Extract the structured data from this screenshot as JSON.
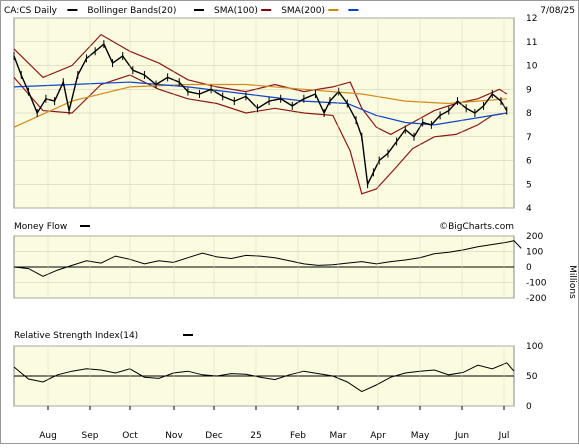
{
  "chart_data": [
    {
      "type": "line",
      "panel": "price",
      "title": "CA:CS Daily",
      "date": "7/08/25",
      "watermark": "©BigCharts.com",
      "legend": [
        {
          "label": "CA:CS Daily",
          "color": "#000000"
        },
        {
          "label": "Bollinger Bands(20)",
          "color": "#000000"
        },
        {
          "label": "SMA(100)",
          "color": "#8b0000"
        },
        {
          "label": "SMA(200)",
          "color": "#cc8800"
        },
        {
          "label": "",
          "color": "#0044cc"
        }
      ],
      "x_labels": [
        "Aug",
        "Sep",
        "Oct",
        "Nov",
        "Dec",
        "25",
        "Feb",
        "Mar",
        "Apr",
        "May",
        "Jun",
        "Jul"
      ],
      "y_ticks": [
        4,
        5,
        6,
        7,
        8,
        9,
        10,
        11,
        12
      ],
      "ylim": [
        4,
        12
      ],
      "price_points": [
        [
          0,
          10.4
        ],
        [
          5,
          9.6
        ],
        [
          10,
          8.9
        ],
        [
          16,
          8.0
        ],
        [
          22,
          8.6
        ],
        [
          28,
          8.5
        ],
        [
          34,
          9.3
        ],
        [
          38,
          8.1
        ],
        [
          44,
          9.6
        ],
        [
          50,
          10.3
        ],
        [
          56,
          10.6
        ],
        [
          62,
          10.9
        ],
        [
          68,
          10.1
        ],
        [
          75,
          10.4
        ],
        [
          82,
          9.8
        ],
        [
          90,
          9.6
        ],
        [
          98,
          9.2
        ],
        [
          106,
          9.5
        ],
        [
          114,
          9.3
        ],
        [
          120,
          8.9
        ],
        [
          128,
          8.8
        ],
        [
          136,
          9.0
        ],
        [
          144,
          8.7
        ],
        [
          152,
          8.5
        ],
        [
          160,
          8.7
        ],
        [
          168,
          8.2
        ],
        [
          176,
          8.5
        ],
        [
          184,
          8.6
        ],
        [
          192,
          8.3
        ],
        [
          200,
          8.6
        ],
        [
          208,
          8.8
        ],
        [
          214,
          8.0
        ],
        [
          218,
          8.5
        ],
        [
          224,
          8.9
        ],
        [
          230,
          8.4
        ],
        [
          236,
          7.7
        ],
        [
          240,
          7.0
        ],
        [
          244,
          5.0
        ],
        [
          248,
          5.5
        ],
        [
          252,
          6.0
        ],
        [
          258,
          6.3
        ],
        [
          264,
          6.8
        ],
        [
          270,
          7.3
        ],
        [
          276,
          7.0
        ],
        [
          282,
          7.6
        ],
        [
          288,
          7.5
        ],
        [
          294,
          7.9
        ],
        [
          300,
          8.1
        ],
        [
          306,
          8.5
        ],
        [
          312,
          8.2
        ],
        [
          318,
          8.0
        ],
        [
          324,
          8.3
        ],
        [
          330,
          8.8
        ],
        [
          336,
          8.5
        ],
        [
          340,
          8.1
        ]
      ],
      "bb_upper": [
        [
          0,
          10.7
        ],
        [
          20,
          9.5
        ],
        [
          40,
          10.0
        ],
        [
          60,
          11.3
        ],
        [
          80,
          10.6
        ],
        [
          100,
          10.1
        ],
        [
          120,
          9.4
        ],
        [
          140,
          9.1
        ],
        [
          160,
          8.9
        ],
        [
          180,
          9.2
        ],
        [
          200,
          8.9
        ],
        [
          220,
          9.1
        ],
        [
          232,
          9.3
        ],
        [
          240,
          8.2
        ],
        [
          250,
          7.4
        ],
        [
          260,
          7.1
        ],
        [
          275,
          7.6
        ],
        [
          290,
          8.1
        ],
        [
          305,
          8.4
        ],
        [
          320,
          8.6
        ],
        [
          335,
          9.0
        ],
        [
          340,
          8.8
        ]
      ],
      "bb_lower": [
        [
          0,
          9.5
        ],
        [
          20,
          8.1
        ],
        [
          40,
          8.0
        ],
        [
          60,
          9.2
        ],
        [
          80,
          9.6
        ],
        [
          100,
          9.0
        ],
        [
          120,
          8.6
        ],
        [
          140,
          8.4
        ],
        [
          160,
          8.0
        ],
        [
          180,
          8.2
        ],
        [
          200,
          8.0
        ],
        [
          220,
          7.9
        ],
        [
          232,
          6.4
        ],
        [
          240,
          4.6
        ],
        [
          250,
          4.8
        ],
        [
          262,
          5.6
        ],
        [
          275,
          6.5
        ],
        [
          290,
          7.0
        ],
        [
          305,
          7.1
        ],
        [
          320,
          7.5
        ],
        [
          330,
          7.9
        ],
        [
          340,
          8.0
        ]
      ],
      "sma100": [
        [
          0,
          9.1
        ],
        [
          40,
          9.2
        ],
        [
          80,
          9.3
        ],
        [
          120,
          9.1
        ],
        [
          160,
          8.8
        ],
        [
          200,
          8.5
        ],
        [
          230,
          8.4
        ],
        [
          250,
          7.9
        ],
        [
          270,
          7.6
        ],
        [
          290,
          7.5
        ],
        [
          310,
          7.7
        ],
        [
          330,
          7.9
        ],
        [
          340,
          8.0
        ]
      ],
      "sma200": [
        [
          0,
          7.4
        ],
        [
          40,
          8.5
        ],
        [
          80,
          9.1
        ],
        [
          120,
          9.2
        ],
        [
          160,
          9.2
        ],
        [
          200,
          9.0
        ],
        [
          240,
          8.8
        ],
        [
          270,
          8.5
        ],
        [
          300,
          8.4
        ],
        [
          320,
          8.5
        ],
        [
          340,
          8.6
        ]
      ]
    },
    {
      "type": "line",
      "panel": "money_flow",
      "title": "Money Flow",
      "y_ticks": [
        -200,
        -100,
        0,
        100,
        200
      ],
      "ylim": [
        -200,
        200
      ],
      "ylabel": "Millions",
      "points": [
        [
          0,
          0
        ],
        [
          10,
          -10
        ],
        [
          20,
          -60
        ],
        [
          30,
          -20
        ],
        [
          40,
          10
        ],
        [
          50,
          40
        ],
        [
          60,
          25
        ],
        [
          70,
          70
        ],
        [
          80,
          50
        ],
        [
          90,
          20
        ],
        [
          100,
          40
        ],
        [
          110,
          30
        ],
        [
          120,
          60
        ],
        [
          130,
          90
        ],
        [
          140,
          65
        ],
        [
          150,
          55
        ],
        [
          160,
          75
        ],
        [
          170,
          70
        ],
        [
          180,
          60
        ],
        [
          190,
          40
        ],
        [
          200,
          20
        ],
        [
          210,
          10
        ],
        [
          220,
          15
        ],
        [
          230,
          25
        ],
        [
          240,
          35
        ],
        [
          250,
          20
        ],
        [
          260,
          35
        ],
        [
          270,
          45
        ],
        [
          280,
          60
        ],
        [
          290,
          85
        ],
        [
          300,
          95
        ],
        [
          310,
          110
        ],
        [
          320,
          130
        ],
        [
          330,
          145
        ],
        [
          340,
          160
        ],
        [
          345,
          170
        ],
        [
          350,
          120
        ]
      ],
      "zero_line": 0
    },
    {
      "type": "line",
      "panel": "rsi",
      "title": "Relative Strength Index(14)",
      "y_ticks": [
        0,
        50,
        100
      ],
      "ylim": [
        0,
        100
      ],
      "points": [
        [
          0,
          65
        ],
        [
          10,
          45
        ],
        [
          20,
          40
        ],
        [
          30,
          52
        ],
        [
          40,
          58
        ],
        [
          50,
          62
        ],
        [
          60,
          60
        ],
        [
          70,
          55
        ],
        [
          80,
          62
        ],
        [
          90,
          48
        ],
        [
          100,
          46
        ],
        [
          110,
          55
        ],
        [
          120,
          58
        ],
        [
          130,
          52
        ],
        [
          140,
          50
        ],
        [
          150,
          54
        ],
        [
          160,
          53
        ],
        [
          170,
          48
        ],
        [
          180,
          44
        ],
        [
          190,
          52
        ],
        [
          200,
          58
        ],
        [
          210,
          54
        ],
        [
          220,
          50
        ],
        [
          230,
          40
        ],
        [
          240,
          24
        ],
        [
          250,
          35
        ],
        [
          260,
          48
        ],
        [
          270,
          55
        ],
        [
          280,
          58
        ],
        [
          290,
          60
        ],
        [
          300,
          52
        ],
        [
          310,
          56
        ],
        [
          320,
          68
        ],
        [
          330,
          62
        ],
        [
          340,
          72
        ],
        [
          345,
          58
        ]
      ],
      "reference_line": 50
    }
  ]
}
